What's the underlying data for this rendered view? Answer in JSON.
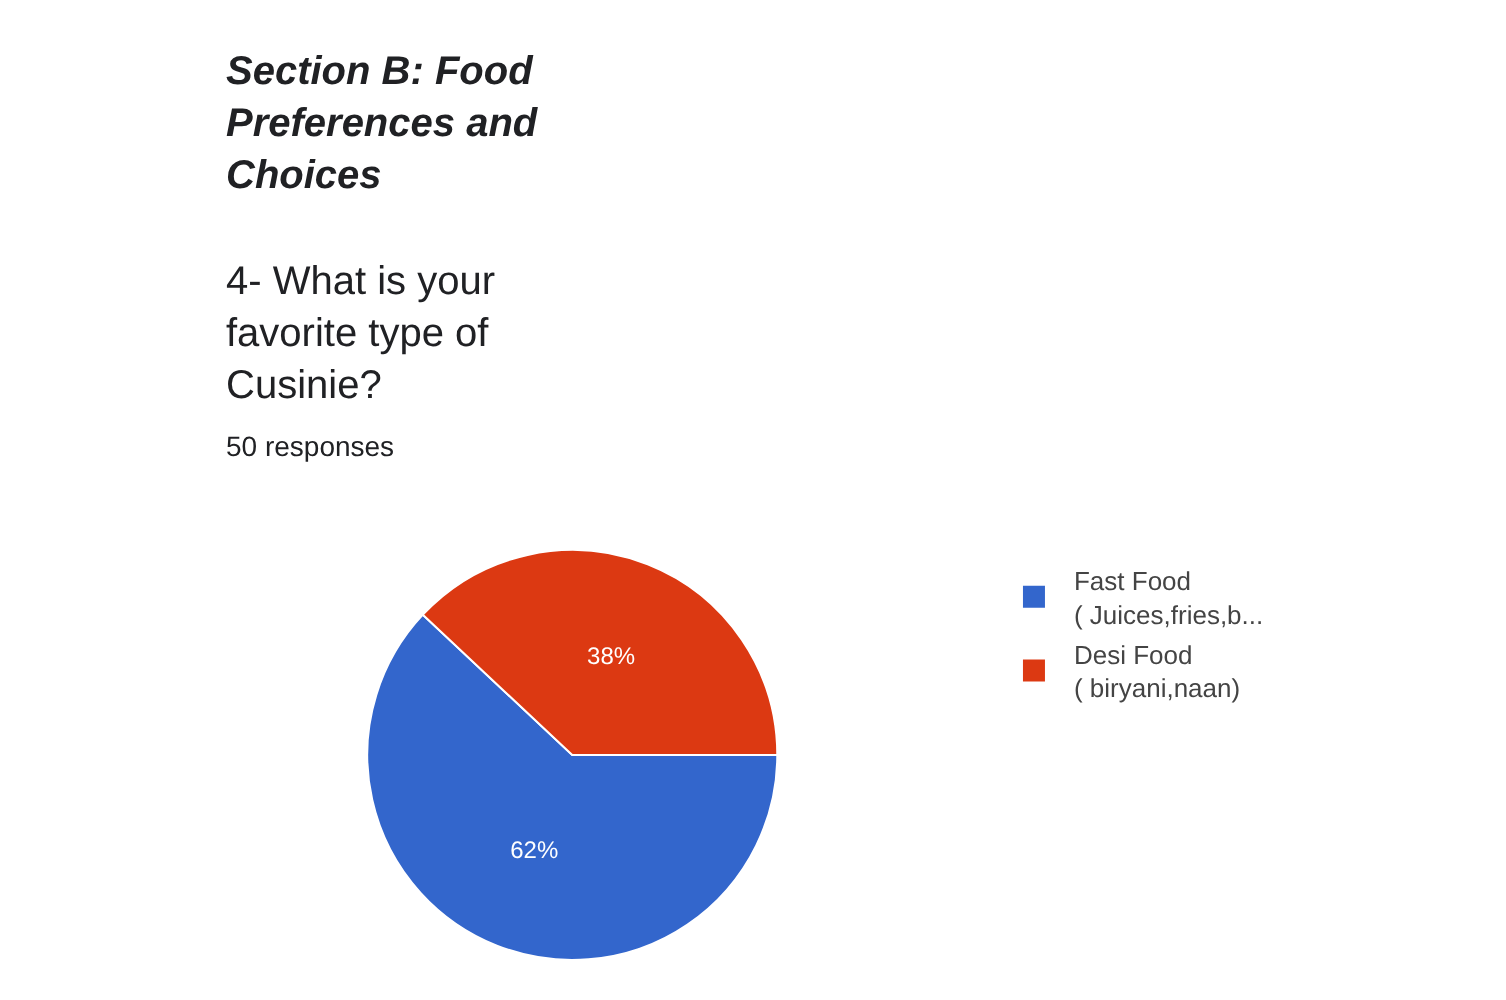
{
  "chart_data": {
    "type": "pie",
    "title": "Section B: Food\nPreferences and\nChoices",
    "subtitle": "4- What is your\nfavorite type of\nCusinie?",
    "annotations": [
      "50 responses"
    ],
    "categories": [
      "Fast Food\n( Juices,fries,b...",
      "Desi Food\n( biryani,naan)"
    ],
    "values": [
      62,
      38
    ],
    "value_labels": [
      "62%",
      "38%"
    ],
    "colors": [
      "#3366cc",
      "#dc3912"
    ],
    "legend": "right"
  }
}
